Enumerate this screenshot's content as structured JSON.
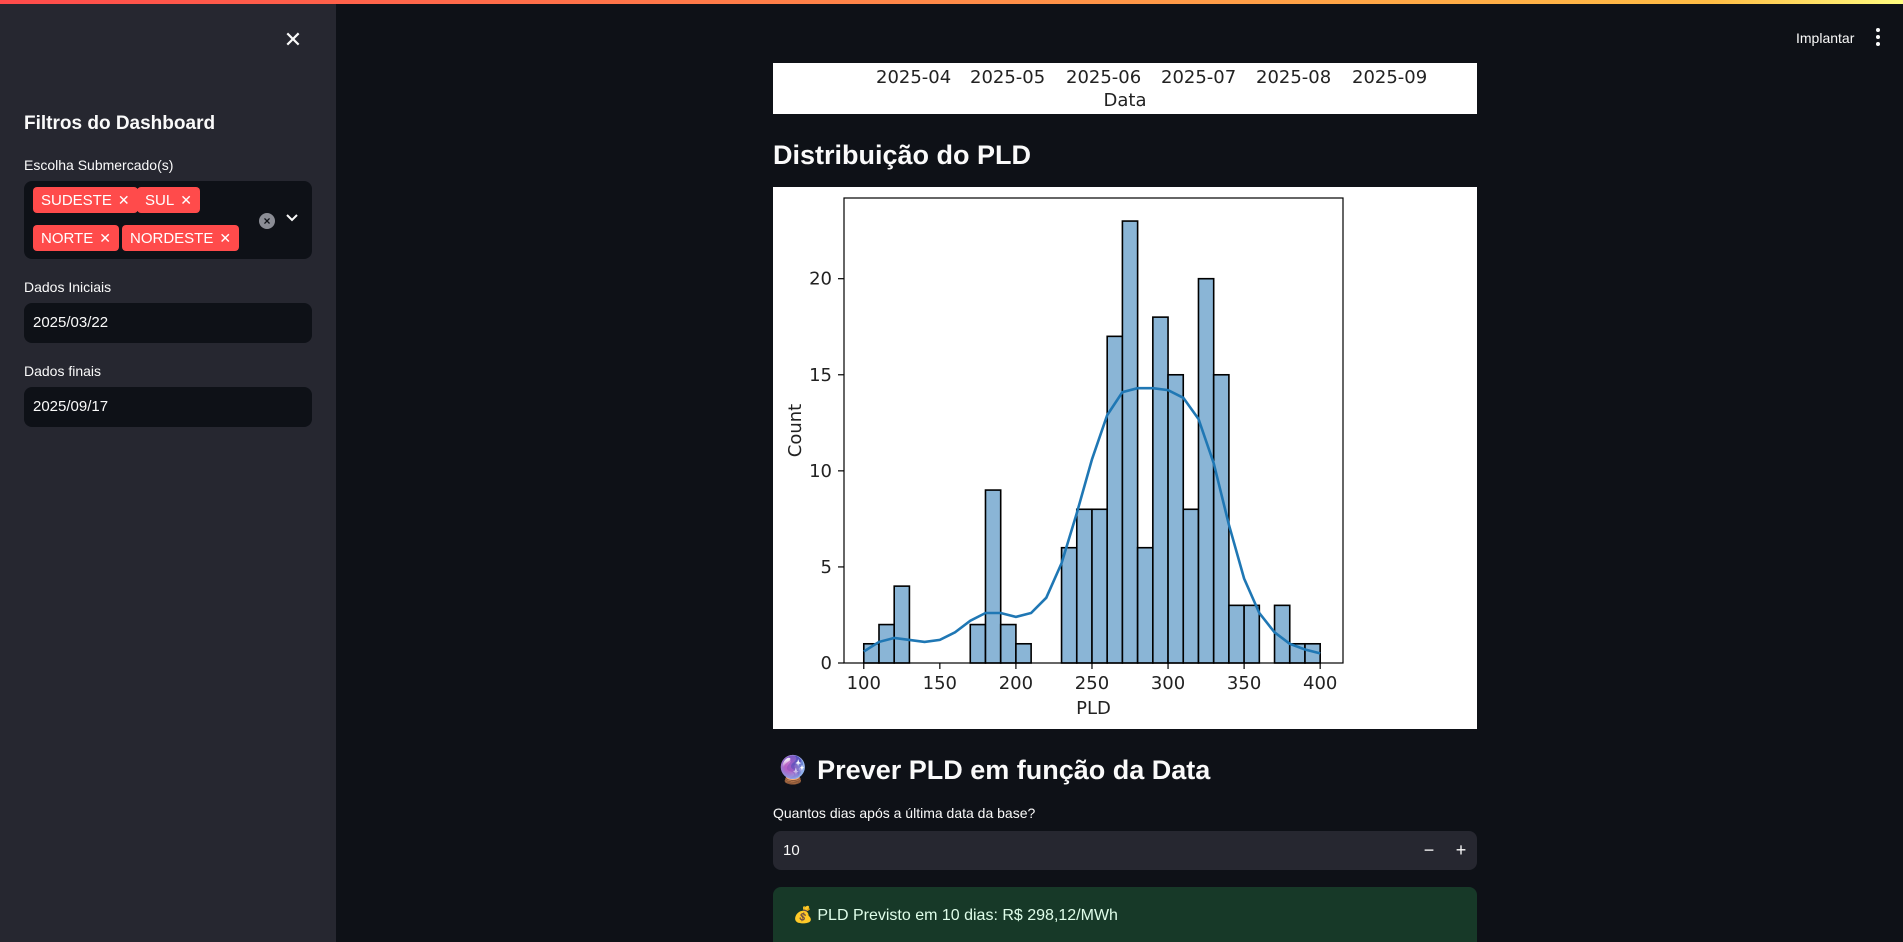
{
  "header": {
    "deploy_label": "Implantar"
  },
  "sidebar": {
    "title": "Filtros do Dashboard",
    "submarket_label": "Escolha Submercado(s)",
    "submarkets": [
      "SUDESTE",
      "SUL",
      "NORTE",
      "NORDESTE"
    ],
    "start_label": "Dados Iniciais",
    "start_value": "2025/03/22",
    "end_label": "Dados finais",
    "end_value": "2025/09/17"
  },
  "previous_chart": {
    "x_ticks": [
      "2025-04",
      "2025-05",
      "2025-06",
      "2025-07",
      "2025-08",
      "2025-09"
    ],
    "xlabel": "Data"
  },
  "distribution": {
    "heading": "Distribuição do PLD"
  },
  "chart_data": {
    "type": "bar",
    "xlabel": "PLD",
    "ylabel": "Count",
    "xlim": [
      87,
      415
    ],
    "ylim": [
      0,
      24.2
    ],
    "x_ticks": [
      100,
      150,
      200,
      250,
      300,
      350,
      400
    ],
    "y_ticks": [
      0,
      5,
      10,
      15,
      20
    ],
    "bin_width": 10,
    "bins": [
      {
        "x0": 100,
        "count": 1
      },
      {
        "x0": 110,
        "count": 2
      },
      {
        "x0": 120,
        "count": 4
      },
      {
        "x0": 170,
        "count": 2
      },
      {
        "x0": 180,
        "count": 9
      },
      {
        "x0": 190,
        "count": 2
      },
      {
        "x0": 200,
        "count": 1
      },
      {
        "x0": 230,
        "count": 6
      },
      {
        "x0": 240,
        "count": 8
      },
      {
        "x0": 250,
        "count": 8
      },
      {
        "x0": 260,
        "count": 17
      },
      {
        "x0": 270,
        "count": 23
      },
      {
        "x0": 280,
        "count": 6
      },
      {
        "x0": 290,
        "count": 18
      },
      {
        "x0": 300,
        "count": 15
      },
      {
        "x0": 310,
        "count": 8
      },
      {
        "x0": 320,
        "count": 20
      },
      {
        "x0": 330,
        "count": 15
      },
      {
        "x0": 340,
        "count": 3
      },
      {
        "x0": 350,
        "count": 3
      },
      {
        "x0": 370,
        "count": 3
      },
      {
        "x0": 380,
        "count": 1
      },
      {
        "x0": 390,
        "count": 1
      }
    ],
    "kde": [
      [
        100,
        0.6
      ],
      [
        110,
        1.1
      ],
      [
        120,
        1.3
      ],
      [
        130,
        1.2
      ],
      [
        140,
        1.1
      ],
      [
        150,
        1.2
      ],
      [
        160,
        1.6
      ],
      [
        170,
        2.2
      ],
      [
        180,
        2.6
      ],
      [
        190,
        2.6
      ],
      [
        200,
        2.4
      ],
      [
        210,
        2.6
      ],
      [
        220,
        3.4
      ],
      [
        230,
        5.2
      ],
      [
        240,
        7.8
      ],
      [
        250,
        10.6
      ],
      [
        260,
        12.9
      ],
      [
        270,
        14.1
      ],
      [
        280,
        14.3
      ],
      [
        290,
        14.3
      ],
      [
        300,
        14.2
      ],
      [
        310,
        13.8
      ],
      [
        320,
        12.7
      ],
      [
        330,
        10.4
      ],
      [
        340,
        7.2
      ],
      [
        350,
        4.4
      ],
      [
        360,
        2.6
      ],
      [
        370,
        1.6
      ],
      [
        380,
        1.0
      ],
      [
        390,
        0.7
      ],
      [
        400,
        0.5
      ]
    ],
    "bar_color": "#8ab5d6",
    "kde_color": "#1f77b4"
  },
  "prediction": {
    "heading": "Prever PLD em função da Data",
    "heading_icon": "crystal-ball-icon",
    "input_label": "Quantos dias após a última data da base?",
    "input_value": "10",
    "result_icon": "money-bag-icon",
    "result_text": "PLD Previsto em 10 dias: R$ 298,12/MWh"
  }
}
